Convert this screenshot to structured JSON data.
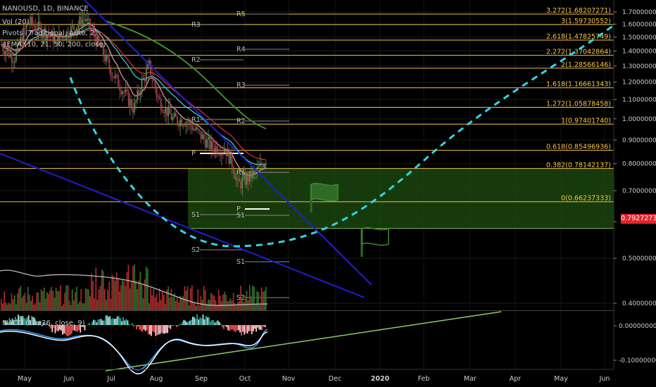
{
  "header": {
    "symbol_line": "NANOUSD, 1D, BINANCE",
    "indicator_vol": "Vol (20)",
    "indicator_pivots": "Pivots (Traditional, Auto, 2)",
    "indicator_ema": "4EMA (10, 21, 50, 200, close)",
    "indicator_macd": "MACD (12, 26, close, 9)"
  },
  "current_price": "0.79272736",
  "colors": {
    "fib": "#f5c242",
    "trend_blue": "#1f1fd0",
    "projection": "#2fd6e6",
    "zone_fill": "#1f4d10",
    "price_tag": "#e0262d",
    "macd_line": "#ffffff",
    "signal_line": "#3aa0ff",
    "ema_green": "#3c8f2e",
    "ema_red": "#d9362b",
    "ema_pink": "#e7a0b0",
    "ema_cyan": "#46d5e0",
    "support_line": "#8ccc6a",
    "pivot_line": "#8a8a8a"
  },
  "icons": [
    "flag-icon",
    "flag-icon-outline"
  ],
  "chart_data": {
    "type": "candlestick",
    "y_scale": "log",
    "ylim": [
      0.37,
      1.78
    ],
    "price_ticks": [
      "1.70000000",
      "1.60000000",
      "1.50000000",
      "1.40000000",
      "1.30000000",
      "1.20000000",
      "1.10000000",
      "1.00000000",
      "0.90000000",
      "0.80000000",
      "0.70000000",
      "0.60000000",
      "0.50000000",
      "0.40000000"
    ],
    "macd_ticks": [
      "0.00000000",
      "-0.10000000"
    ],
    "x_labels": [
      "May",
      "Jun",
      "Jul",
      "Aug",
      "Sep",
      "Oct",
      "Nov",
      "Dec",
      "2020",
      "Feb",
      "Mar",
      "Apr",
      "May",
      "Jun"
    ],
    "fib_levels": [
      {
        "label": "3.272(1.68207271)",
        "value": 1.68207271
      },
      {
        "label": "3(1.59730552)",
        "value": 1.59730552
      },
      {
        "label": "2.618(1.47825749)",
        "value": 1.47825749
      },
      {
        "label": "2.272(1.37042864)",
        "value": 1.37042864
      },
      {
        "label": "2(1.28566146)",
        "value": 1.28566146
      },
      {
        "label": "1.618(1.16661343)",
        "value": 1.16661343
      },
      {
        "label": "1.272(1.05878458)",
        "value": 1.05878458
      },
      {
        "label": "1(0.97401740)",
        "value": 0.9740174
      },
      {
        "label": "0.618(0.85496936)",
        "value": 0.85496936
      },
      {
        "label": "0.382(0.78142137)",
        "value": 0.78142137
      },
      {
        "label": "0(0.66237333)",
        "value": 0.66237333
      }
    ],
    "pivot_labels": [
      {
        "label": "R5",
        "value": 1.7
      },
      {
        "label": "R3",
        "value": 1.63
      },
      {
        "label": "R4",
        "value": 1.5
      },
      {
        "label": "R2",
        "value": 1.47
      },
      {
        "label": "R3",
        "value": 1.37
      },
      {
        "label": "R1",
        "value": 1.2
      },
      {
        "label": "R2",
        "value": 1.2
      },
      {
        "label": "P",
        "value": 1.06
      },
      {
        "label": "R1",
        "value": 0.98
      },
      {
        "label": "P",
        "value": 0.82
      },
      {
        "label": "S1",
        "value": 0.8
      },
      {
        "label": "S1",
        "value": 0.8
      },
      {
        "label": "S2",
        "value": 0.69
      },
      {
        "label": "S1",
        "value": 0.62
      },
      {
        "label": "S2",
        "value": 0.43
      }
    ]
  }
}
